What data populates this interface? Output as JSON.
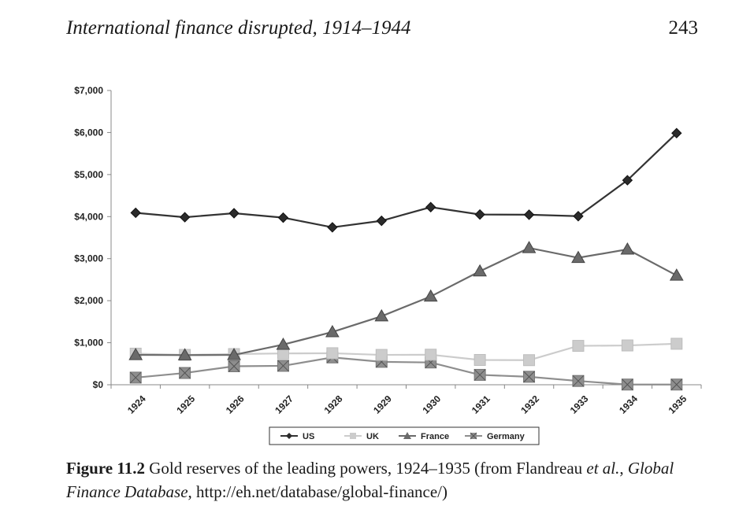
{
  "header": {
    "running_title": "International finance disrupted, 1914–1944",
    "page_number": "243"
  },
  "caption": {
    "label": "Figure 11.2",
    "text_before_italic": "Gold reserves of the leading powers, 1924–1935 (from Flandreau",
    "italic_etal": "et al.",
    "comma": ", ",
    "italic_source": "Global Finance Database",
    "text_after": ", http://eh.net/database/global-finance/)"
  },
  "chart_data": {
    "type": "line",
    "title": "",
    "xlabel": "",
    "ylabel": "",
    "categories": [
      "1924",
      "1925",
      "1926",
      "1927",
      "1928",
      "1929",
      "1930",
      "1931",
      "1932",
      "1933",
      "1934",
      "1935"
    ],
    "ylim": [
      0,
      7000
    ],
    "yticks": [
      0,
      1000,
      2000,
      3000,
      4000,
      5000,
      6000,
      7000
    ],
    "ytick_labels": [
      "$0",
      "$1,000",
      "$2,000",
      "$3,000",
      "$4,000",
      "$5,000",
      "$6,000",
      "$7,000"
    ],
    "grid": false,
    "legend_position": "bottom",
    "series": [
      {
        "name": "US",
        "marker": "diamond",
        "color": "#333333",
        "values": [
          4090,
          3985,
          4080,
          3975,
          3745,
          3900,
          4225,
          4050,
          4045,
          4010,
          4865,
          5985
        ]
      },
      {
        "name": "UK",
        "marker": "square",
        "color": "#cccccc",
        "values": [
          740,
          710,
          730,
          745,
          750,
          710,
          715,
          590,
          585,
          925,
          935,
          975
        ]
      },
      {
        "name": "France",
        "marker": "triangle",
        "color": "#6a6a6a",
        "values": [
          710,
          705,
          710,
          955,
          1255,
          1630,
          2100,
          2700,
          3255,
          3020,
          3220,
          2600
        ]
      },
      {
        "name": "Germany",
        "marker": "x-square",
        "color": "#8e8e8e",
        "values": [
          170,
          280,
          440,
          450,
          650,
          545,
          530,
          235,
          190,
          90,
          5,
          5
        ]
      }
    ]
  }
}
